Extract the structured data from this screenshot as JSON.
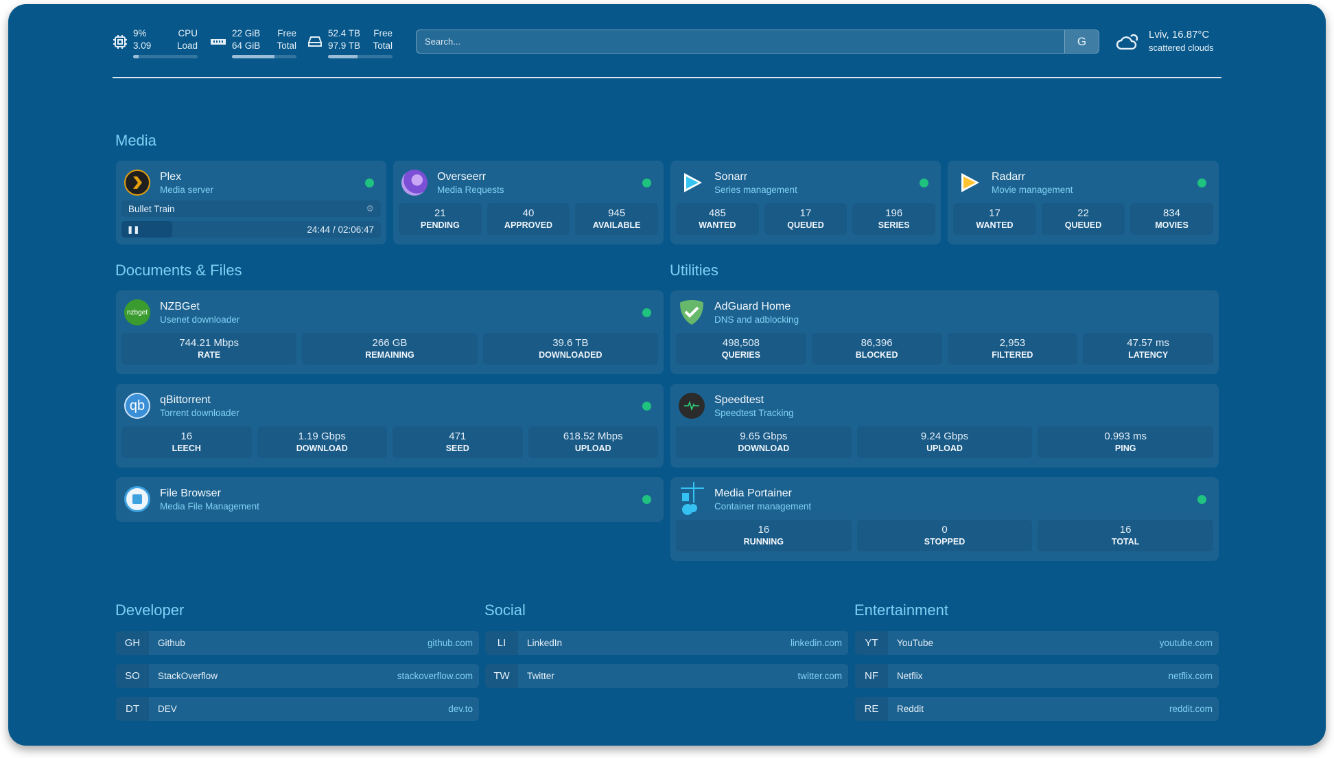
{
  "resources": {
    "cpu": {
      "icon": "cpu-icon",
      "value1": "9%",
      "label1": "CPU",
      "value2": "3.09",
      "label2": "Load",
      "usage_percent": 9
    },
    "memory": {
      "icon": "memory-icon",
      "value1": "22 GiB",
      "label1": "Free",
      "value2": "64 GiB",
      "label2": "Total",
      "usage_percent": 66
    },
    "disk": {
      "icon": "disk-icon",
      "value1": "52.4 TB",
      "label1": "Free",
      "value2": "97.9 TB",
      "label2": "Total",
      "usage_percent": 46
    }
  },
  "search": {
    "placeholder": "Search...",
    "provider_label": "G"
  },
  "weather": {
    "icon": "cloud-sun-icon",
    "location_temp": "Lviv, 16.87°C",
    "condition": "scattered clouds"
  },
  "colors": {
    "background": "#07578a",
    "card": "#1c6290",
    "accent": "#7fd0f5",
    "status": "#1fc27e"
  },
  "groups": {
    "media": {
      "title": "Media",
      "services": [
        {
          "name": "Plex",
          "desc": "Media server",
          "icon": "plex-icon",
          "now_playing": {
            "title": "Bullet Train",
            "time": "24:44 / 02:06:47",
            "progress_percent": 19.5
          }
        },
        {
          "name": "Overseerr",
          "desc": "Media Requests",
          "icon": "overseerr-icon",
          "stats": [
            {
              "v": "21",
              "l": "PENDING"
            },
            {
              "v": "40",
              "l": "APPROVED"
            },
            {
              "v": "945",
              "l": "AVAILABLE"
            }
          ]
        },
        {
          "name": "Sonarr",
          "desc": "Series management",
          "icon": "sonarr-icon",
          "stats": [
            {
              "v": "485",
              "l": "WANTED"
            },
            {
              "v": "17",
              "l": "QUEUED"
            },
            {
              "v": "196",
              "l": "SERIES"
            }
          ]
        },
        {
          "name": "Radarr",
          "desc": "Movie management",
          "icon": "radarr-icon",
          "stats": [
            {
              "v": "17",
              "l": "WANTED"
            },
            {
              "v": "22",
              "l": "QUEUED"
            },
            {
              "v": "834",
              "l": "MOVIES"
            }
          ]
        }
      ]
    },
    "documents": {
      "title": "Documents & Files",
      "services": [
        {
          "name": "NZBGet",
          "desc": "Usenet downloader",
          "icon": "nzbget-icon",
          "icon_text": "nzbget",
          "stats": [
            {
              "v": "744.21 Mbps",
              "l": "RATE"
            },
            {
              "v": "266 GB",
              "l": "REMAINING"
            },
            {
              "v": "39.6 TB",
              "l": "DOWNLOADED"
            }
          ]
        },
        {
          "name": "qBittorrent",
          "desc": "Torrent downloader",
          "icon": "qbittorrent-icon",
          "icon_text": "qb",
          "stats": [
            {
              "v": "16",
              "l": "LEECH"
            },
            {
              "v": "1.19 Gbps",
              "l": "DOWNLOAD"
            },
            {
              "v": "471",
              "l": "SEED"
            },
            {
              "v": "618.52 Mbps",
              "l": "UPLOAD"
            }
          ]
        },
        {
          "name": "File Browser",
          "desc": "Media File Management",
          "icon": "file-browser-icon"
        }
      ]
    },
    "utilities": {
      "title": "Utilities",
      "services": [
        {
          "name": "AdGuard Home",
          "desc": "DNS and adblocking",
          "icon": "adguard-shield-icon",
          "stats": [
            {
              "v": "498,508",
              "l": "QUERIES"
            },
            {
              "v": "86,396",
              "l": "BLOCKED"
            },
            {
              "v": "2,953",
              "l": "FILTERED"
            },
            {
              "v": "47.57 ms",
              "l": "LATENCY"
            }
          ]
        },
        {
          "name": "Speedtest",
          "desc": "Speedtest Tracking",
          "icon": "speedtest-pulse-icon",
          "stats": [
            {
              "v": "9.65 Gbps",
              "l": "DOWNLOAD"
            },
            {
              "v": "9.24 Gbps",
              "l": "UPLOAD"
            },
            {
              "v": "0.993 ms",
              "l": "PING"
            }
          ]
        },
        {
          "name": "Media Portainer",
          "desc": "Container management",
          "icon": "portainer-icon",
          "stats": [
            {
              "v": "16",
              "l": "RUNNING"
            },
            {
              "v": "0",
              "l": "STOPPED"
            },
            {
              "v": "16",
              "l": "TOTAL"
            }
          ]
        }
      ]
    }
  },
  "bookmarks": [
    {
      "title": "Developer",
      "items": [
        {
          "abbr": "GH",
          "name": "Github",
          "url": "github.com"
        },
        {
          "abbr": "SO",
          "name": "StackOverflow",
          "url": "stackoverflow.com"
        },
        {
          "abbr": "DT",
          "name": "DEV",
          "url": "dev.to"
        }
      ]
    },
    {
      "title": "Social",
      "items": [
        {
          "abbr": "LI",
          "name": "LinkedIn",
          "url": "linkedin.com"
        },
        {
          "abbr": "TW",
          "name": "Twitter",
          "url": "twitter.com"
        }
      ]
    },
    {
      "title": "Entertainment",
      "items": [
        {
          "abbr": "YT",
          "name": "YouTube",
          "url": "youtube.com"
        },
        {
          "abbr": "NF",
          "name": "Netflix",
          "url": "netflix.com"
        },
        {
          "abbr": "RE",
          "name": "Reddit",
          "url": "reddit.com"
        }
      ]
    }
  ]
}
